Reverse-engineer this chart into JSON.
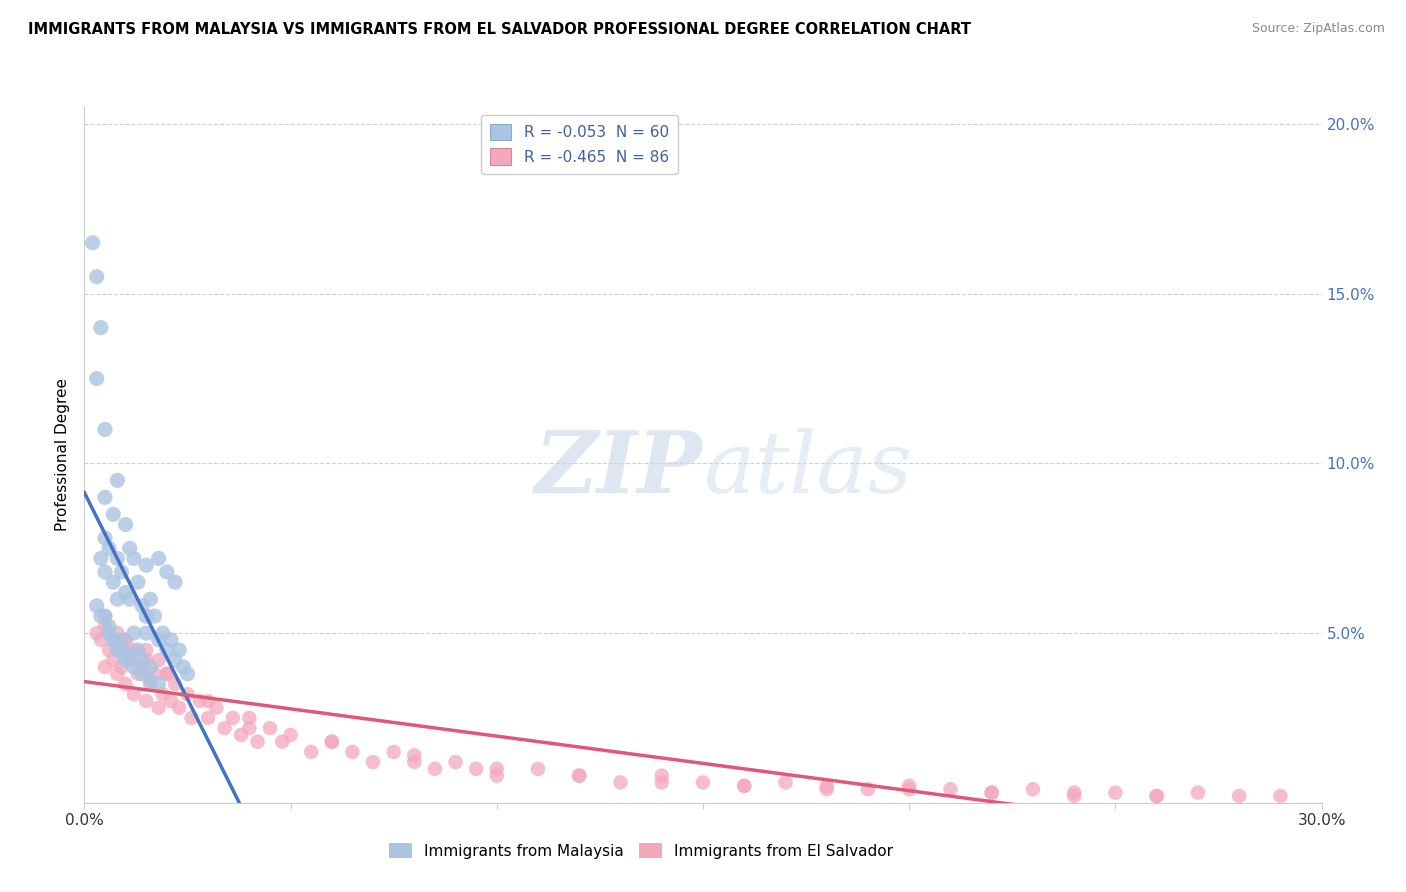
{
  "title": "IMMIGRANTS FROM MALAYSIA VS IMMIGRANTS FROM EL SALVADOR PROFESSIONAL DEGREE CORRELATION CHART",
  "source": "Source: ZipAtlas.com",
  "ylabel": "Professional Degree",
  "x_min": 0.0,
  "x_max": 0.3,
  "y_min": 0.0,
  "y_max": 0.205,
  "legend_1_label": "R = -0.053  N = 60",
  "legend_2_label": "R = -0.465  N = 86",
  "legend_color_1": "#aac4e2",
  "legend_color_2": "#f4a8bc",
  "line_color_1": "#4472c4",
  "line_color_2": "#e05878",
  "line_dash_color_1": "#a8c4e8",
  "scatter_color_1": "#aac4e2",
  "scatter_color_2": "#f4a8bc",
  "watermark_zip": "ZIP",
  "watermark_atlas": "atlas",
  "malaysia_x": [
    0.002,
    0.003,
    0.004,
    0.004,
    0.005,
    0.005,
    0.005,
    0.005,
    0.006,
    0.006,
    0.007,
    0.007,
    0.007,
    0.008,
    0.008,
    0.008,
    0.009,
    0.009,
    0.01,
    0.01,
    0.01,
    0.011,
    0.011,
    0.012,
    0.012,
    0.013,
    0.013,
    0.014,
    0.014,
    0.015,
    0.015,
    0.016,
    0.016,
    0.017,
    0.018,
    0.018,
    0.019,
    0.02,
    0.02,
    0.021,
    0.022,
    0.022,
    0.023,
    0.024,
    0.025,
    0.003,
    0.004,
    0.006,
    0.007,
    0.009,
    0.01,
    0.012,
    0.014,
    0.016,
    0.003,
    0.005,
    0.008,
    0.011,
    0.015,
    0.018
  ],
  "malaysia_y": [
    0.165,
    0.155,
    0.14,
    0.072,
    0.09,
    0.078,
    0.068,
    0.055,
    0.075,
    0.052,
    0.085,
    0.065,
    0.048,
    0.072,
    0.06,
    0.045,
    0.068,
    0.048,
    0.082,
    0.062,
    0.044,
    0.06,
    0.042,
    0.072,
    0.05,
    0.065,
    0.045,
    0.058,
    0.042,
    0.07,
    0.05,
    0.06,
    0.04,
    0.055,
    0.072,
    0.048,
    0.05,
    0.068,
    0.045,
    0.048,
    0.065,
    0.042,
    0.045,
    0.04,
    0.038,
    0.058,
    0.055,
    0.05,
    0.048,
    0.045,
    0.042,
    0.04,
    0.038,
    0.036,
    0.125,
    0.11,
    0.095,
    0.075,
    0.055,
    0.035
  ],
  "salvador_x": [
    0.003,
    0.004,
    0.005,
    0.005,
    0.006,
    0.007,
    0.008,
    0.008,
    0.009,
    0.01,
    0.01,
    0.011,
    0.012,
    0.012,
    0.013,
    0.014,
    0.015,
    0.015,
    0.016,
    0.017,
    0.018,
    0.018,
    0.019,
    0.02,
    0.021,
    0.022,
    0.023,
    0.025,
    0.026,
    0.028,
    0.03,
    0.032,
    0.034,
    0.036,
    0.038,
    0.04,
    0.042,
    0.045,
    0.048,
    0.05,
    0.055,
    0.06,
    0.065,
    0.07,
    0.075,
    0.08,
    0.085,
    0.09,
    0.095,
    0.1,
    0.11,
    0.12,
    0.13,
    0.14,
    0.15,
    0.16,
    0.17,
    0.18,
    0.19,
    0.2,
    0.21,
    0.22,
    0.23,
    0.24,
    0.25,
    0.26,
    0.27,
    0.28,
    0.29,
    0.005,
    0.01,
    0.015,
    0.02,
    0.03,
    0.04,
    0.06,
    0.08,
    0.1,
    0.12,
    0.14,
    0.16,
    0.18,
    0.2,
    0.22,
    0.24,
    0.26
  ],
  "salvador_y": [
    0.05,
    0.048,
    0.055,
    0.04,
    0.045,
    0.042,
    0.05,
    0.038,
    0.04,
    0.048,
    0.035,
    0.042,
    0.045,
    0.032,
    0.038,
    0.04,
    0.045,
    0.03,
    0.035,
    0.038,
    0.042,
    0.028,
    0.032,
    0.038,
    0.03,
    0.035,
    0.028,
    0.032,
    0.025,
    0.03,
    0.025,
    0.028,
    0.022,
    0.025,
    0.02,
    0.022,
    0.018,
    0.022,
    0.018,
    0.02,
    0.015,
    0.018,
    0.015,
    0.012,
    0.015,
    0.012,
    0.01,
    0.012,
    0.01,
    0.008,
    0.01,
    0.008,
    0.006,
    0.008,
    0.006,
    0.005,
    0.006,
    0.005,
    0.004,
    0.005,
    0.004,
    0.003,
    0.004,
    0.003,
    0.003,
    0.002,
    0.003,
    0.002,
    0.002,
    0.052,
    0.048,
    0.042,
    0.038,
    0.03,
    0.025,
    0.018,
    0.014,
    0.01,
    0.008,
    0.006,
    0.005,
    0.004,
    0.004,
    0.003,
    0.002,
    0.002
  ]
}
